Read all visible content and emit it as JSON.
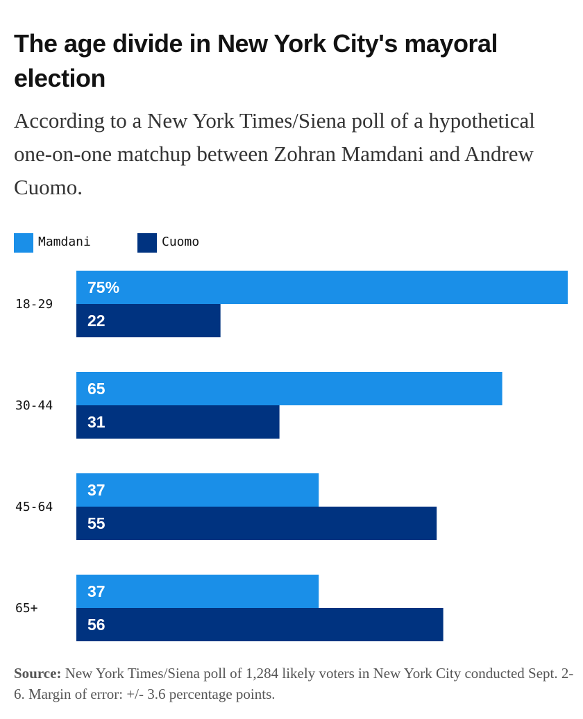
{
  "title": "The age divide in New York City's mayoral election",
  "subtitle": "According to a New York Times/Siena poll of a hypothetical one-on-one matchup between Zohran Mamdani and Andrew Cuomo.",
  "colors": {
    "mamdani": "#1a8fe8",
    "cuomo": "#003380"
  },
  "legend": [
    {
      "name": "Mamdani",
      "color": "#1a8fe8"
    },
    {
      "name": "Cuomo",
      "color": "#003380"
    }
  ],
  "chart_data": {
    "type": "bar",
    "orientation": "horizontal",
    "categories": [
      "18-29",
      "30-44",
      "45-64",
      "65+"
    ],
    "series": [
      {
        "name": "Mamdani",
        "values": [
          75,
          65,
          37,
          37
        ],
        "labels": [
          "75%",
          "65",
          "37",
          "37"
        ]
      },
      {
        "name": "Cuomo",
        "values": [
          22,
          31,
          55,
          56
        ],
        "labels": [
          "22",
          "31",
          "55",
          "56"
        ]
      }
    ],
    "xlim": [
      0,
      75
    ],
    "grid": false,
    "legend": "top-left"
  },
  "source": {
    "label": "Source:",
    "text": "New York Times/Siena poll of 1,284 likely voters in New York City conducted Sept. 2-6. Margin of error: +/- 3.6 percentage points."
  }
}
